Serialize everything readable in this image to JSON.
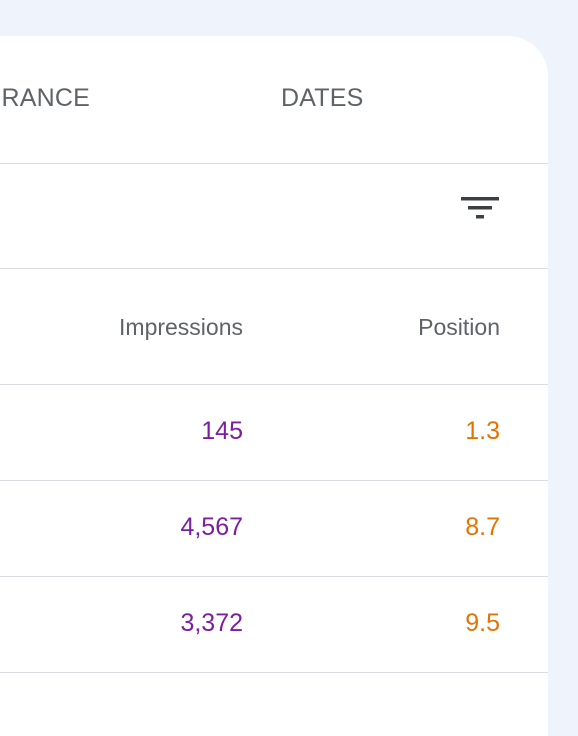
{
  "tabs": {
    "ctr_fragment": "RANCE",
    "dates": "DATES"
  },
  "filter": {
    "icon": "filter-icon"
  },
  "table": {
    "columns": {
      "impressions": "Impressions",
      "position": "Position"
    },
    "rows": [
      {
        "impressions": "145",
        "position": "1.3"
      },
      {
        "impressions": "4,567",
        "position": "8.7"
      },
      {
        "impressions": "3,372",
        "position": "9.5"
      }
    ]
  },
  "colors": {
    "impressions": "#7b1fa2",
    "position": "#e37400",
    "background": "#eef3fc",
    "divider": "#dadce0"
  }
}
